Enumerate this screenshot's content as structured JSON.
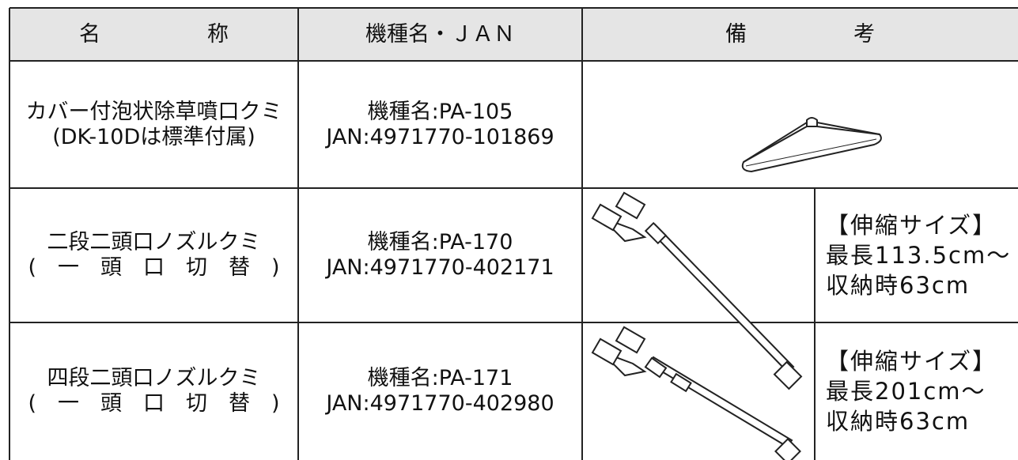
{
  "table": {
    "header": [
      "名　　　　　称",
      "機種名・ＪＡＮ",
      "備　　　　　考"
    ],
    "rows": [
      {
        "name": [
          "カバー付泡状除草噴口クミ",
          "(DK-10Dは標準付属)"
        ],
        "model": [
          "機種名:PA-105",
          "JAN:4971770-101869"
        ]
      },
      {
        "name": [
          "二段二頭口ノズルクミ",
          "(　一　頭　口　切　替　)"
        ],
        "model": [
          "機種名:PA-170",
          "JAN:4971770-402171"
        ],
        "note": [
          "【伸縮サイズ】",
          "最長113.5cm～",
          "収納時63cm"
        ]
      },
      {
        "name": [
          "四段二頭口ノズルクミ",
          "(　一　頭　口　切　替　)"
        ],
        "model": [
          "機種名:PA-171",
          "JAN:4971770-402980"
        ],
        "note": [
          "【伸縮サイズ】",
          "最長201cm～",
          "収納時63cm"
        ]
      }
    ]
  }
}
